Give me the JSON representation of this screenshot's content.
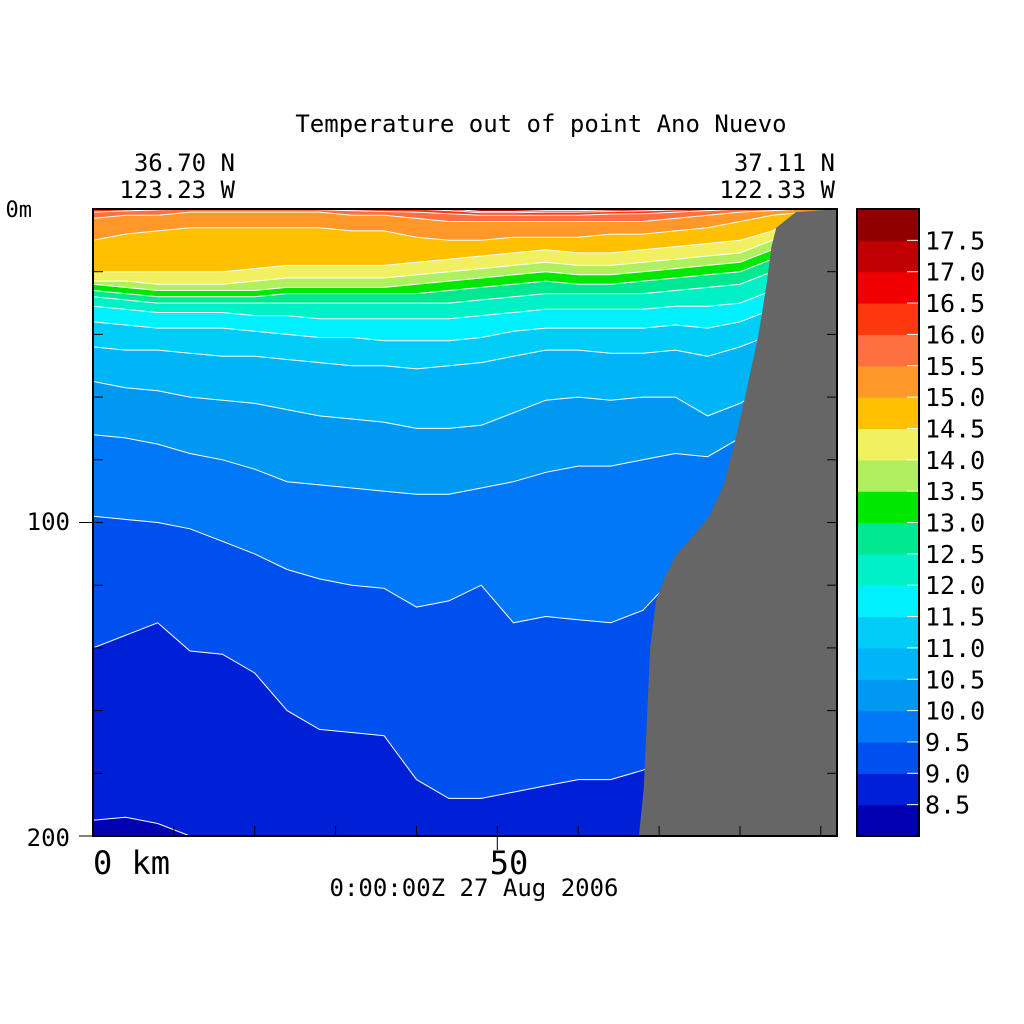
{
  "chart_data": {
    "type": "heatmap",
    "title": "Temperature out of point Ano Nuevo",
    "left_lat": "36.70 N",
    "left_lon": "123.23 W",
    "right_lat": "37.11 N",
    "right_lon": "122.33 W",
    "timestamp": "0:00:00Z  27 Aug 2006",
    "ylabel_top": "0m",
    "y_ticks": [
      "100",
      "200"
    ],
    "x_ticks": [
      "0 km",
      "50"
    ],
    "xlim": [
      0,
      92
    ],
    "ylim": [
      0,
      200
    ],
    "y_inverted": true,
    "colorbar_levels": [
      "8.5",
      "9.0",
      "9.5",
      "10.0",
      "10.5",
      "11.0",
      "11.5",
      "12.0",
      "12.5",
      "13.0",
      "13.5",
      "14.0",
      "14.5",
      "15.0",
      "15.5",
      "16.0",
      "16.5",
      "17.0",
      "17.5"
    ],
    "colorbar_colors": [
      "#0000b0",
      "#0020d8",
      "#0050f0",
      "#0078f8",
      "#0098f0",
      "#00b4f8",
      "#00ccf8",
      "#00f0ff",
      "#00f0c8",
      "#00e890",
      "#00e800",
      "#b0f060",
      "#f0f060",
      "#ffc000",
      "#ff9828",
      "#ff7040",
      "#ff3810",
      "#f00000",
      "#c00000",
      "#900000"
    ],
    "isotherms": [
      {
        "value": 8.5,
        "depth": [
          195,
          194,
          196,
          200,
          200,
          200,
          200,
          200,
          200,
          200,
          200,
          200,
          200,
          200,
          200,
          200,
          200,
          200,
          200,
          200,
          200,
          200,
          200,
          200
        ]
      },
      {
        "value": 9.0,
        "depth": [
          140,
          136,
          132,
          141,
          142,
          148,
          160,
          166,
          167,
          168,
          182,
          188,
          188,
          186,
          184,
          182,
          182,
          179,
          175,
          200,
          200,
          200,
          200,
          200
        ]
      },
      {
        "value": 9.5,
        "depth": [
          98,
          99,
          100,
          102,
          106,
          110,
          115,
          118,
          120,
          121,
          127,
          125,
          120,
          132,
          130,
          131,
          132,
          128,
          117,
          108,
          105,
          100,
          100,
          100
        ]
      },
      {
        "value": 10.0,
        "depth": [
          72,
          73,
          75,
          78,
          80,
          83,
          87,
          88,
          89,
          90,
          91,
          91,
          89,
          87,
          84,
          82,
          82,
          80,
          78,
          79,
          73,
          68,
          66,
          66
        ]
      },
      {
        "value": 10.5,
        "depth": [
          55,
          57,
          58,
          60,
          61,
          62,
          64,
          66,
          67,
          68,
          70,
          70,
          69,
          65,
          61,
          60,
          61,
          60,
          60,
          66,
          62,
          56,
          52,
          52
        ]
      },
      {
        "value": 11.0,
        "depth": [
          44,
          45,
          45,
          46,
          47,
          47,
          48,
          49,
          50,
          50,
          51,
          50,
          49,
          47,
          45,
          45,
          46,
          46,
          45,
          47,
          44,
          40,
          36,
          36
        ]
      },
      {
        "value": 11.5,
        "depth": [
          36,
          37,
          38,
          38,
          38,
          39,
          40,
          41,
          41,
          42,
          42,
          42,
          41,
          39,
          38,
          38,
          38,
          38,
          37,
          38,
          36,
          32,
          27,
          27
        ]
      },
      {
        "value": 12.0,
        "depth": [
          31,
          32,
          33,
          33,
          33,
          34,
          34,
          35,
          35,
          35,
          35,
          35,
          34,
          33,
          32,
          32,
          32,
          32,
          31,
          31,
          30,
          26,
          20,
          20
        ]
      },
      {
        "value": 12.5,
        "depth": [
          28,
          29,
          30,
          30,
          30,
          30,
          30,
          30,
          30,
          30,
          30,
          30,
          29,
          28,
          27,
          27,
          27,
          27,
          26,
          25,
          24,
          20,
          14,
          14
        ]
      },
      {
        "value": 13.0,
        "depth": [
          26,
          27,
          28,
          28,
          28,
          28,
          27,
          27,
          27,
          27,
          27,
          26,
          25,
          24,
          23,
          24,
          24,
          23,
          22,
          21,
          20,
          16,
          9,
          8
        ]
      },
      {
        "value": 13.5,
        "depth": [
          24,
          25,
          26,
          26,
          26,
          26,
          25,
          25,
          25,
          25,
          24,
          23,
          22,
          21,
          20,
          21,
          21,
          20,
          19,
          18,
          17,
          13,
          6,
          5
        ]
      },
      {
        "value": 14.0,
        "depth": [
          23,
          23,
          24,
          24,
          24,
          23,
          22,
          22,
          22,
          22,
          21,
          20,
          19,
          18,
          17,
          18,
          18,
          17,
          16,
          15,
          14,
          10,
          4,
          3
        ]
      },
      {
        "value": 14.5,
        "depth": [
          20,
          20,
          20,
          20,
          20,
          19,
          18,
          18,
          18,
          18,
          17,
          16,
          15,
          14,
          13,
          14,
          14,
          13,
          12,
          11,
          10,
          7,
          2,
          2
        ]
      },
      {
        "value": 15.0,
        "depth": [
          10,
          8,
          7,
          6,
          6,
          6,
          6,
          6,
          7,
          7,
          9,
          10,
          10,
          9,
          9,
          9,
          8,
          8,
          7,
          6,
          4,
          2,
          1,
          1
        ]
      },
      {
        "value": 15.5,
        "depth": [
          3,
          2,
          2,
          1,
          1,
          1,
          1,
          1,
          2,
          2,
          3,
          4,
          4,
          4,
          4,
          4,
          4,
          4,
          3,
          2,
          1,
          0.5,
          0,
          0
        ]
      },
      {
        "value": 16.0,
        "depth": [
          1,
          0.6,
          0.3,
          0,
          0,
          0,
          0,
          0.2,
          0.5,
          0.8,
          1,
          1.5,
          2,
          2,
          2,
          2,
          1.6,
          1.5,
          1,
          0.5,
          0,
          0,
          0,
          0
        ]
      },
      {
        "value": 16.5,
        "depth": [
          0,
          0,
          0,
          0,
          0,
          0,
          0,
          0,
          0,
          0,
          0,
          0.5,
          1.2,
          1.2,
          1,
          1,
          0.8,
          0.6,
          0.3,
          0,
          0,
          0,
          0,
          0
        ]
      },
      {
        "value": 17.0,
        "depth": [
          0,
          0,
          0,
          0,
          0,
          0,
          0,
          0,
          0,
          0,
          0,
          0,
          0.8,
          0.8,
          0.5,
          0.5,
          0.3,
          0,
          0,
          0,
          0,
          0,
          0,
          0
        ]
      }
    ],
    "bathymetry": [
      {
        "x": 67.5,
        "depth": 200
      },
      {
        "x": 68.1,
        "depth": 185
      },
      {
        "x": 68.9,
        "depth": 140
      },
      {
        "x": 69.6,
        "depth": 125
      },
      {
        "x": 70.8,
        "depth": 117
      },
      {
        "x": 72.2,
        "depth": 110
      },
      {
        "x": 74.3,
        "depth": 104
      },
      {
        "x": 76.2,
        "depth": 98
      },
      {
        "x": 78.0,
        "depth": 88
      },
      {
        "x": 79.4,
        "depth": 74
      },
      {
        "x": 80.8,
        "depth": 58
      },
      {
        "x": 82.3,
        "depth": 40
      },
      {
        "x": 83.3,
        "depth": 24
      },
      {
        "x": 83.9,
        "depth": 12
      },
      {
        "x": 84.5,
        "depth": 6
      },
      {
        "x": 86.9,
        "depth": 1
      },
      {
        "x": 92.0,
        "depth": 0
      }
    ]
  }
}
